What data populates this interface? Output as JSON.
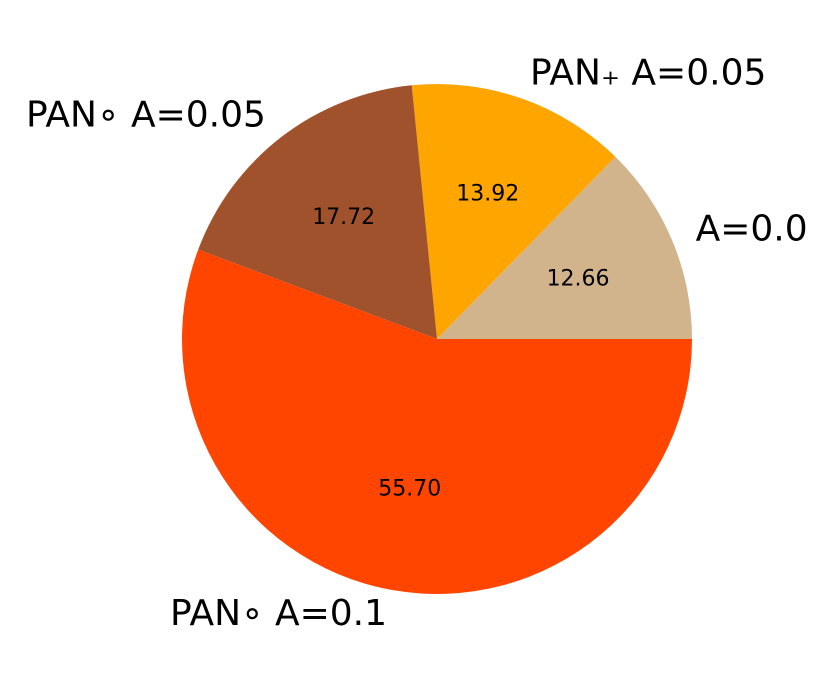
{
  "chart_data": {
    "type": "pie",
    "categories": [
      "A=0.0",
      "PAN₊ A=0.05",
      "PAN∘ A=0.05",
      "PAN∘ A=0.1"
    ],
    "values": [
      12.66,
      13.92,
      17.72,
      55.7
    ],
    "value_labels": [
      "12.66",
      "13.92",
      "17.72",
      "55.70"
    ],
    "colors": [
      "#d2b48c",
      "#ffa500",
      "#a0522d",
      "#ff4500"
    ]
  }
}
